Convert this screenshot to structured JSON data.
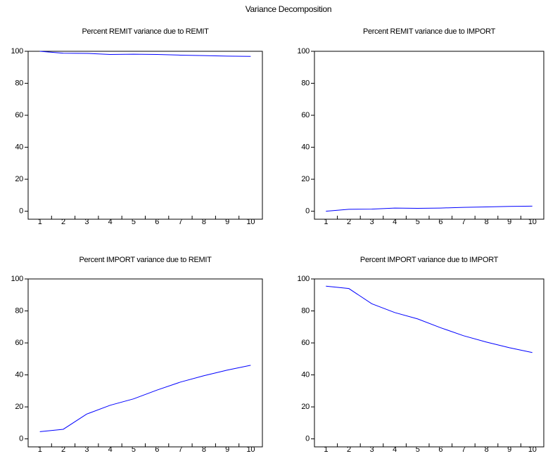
{
  "title": "Variance Decomposition",
  "chart_data": [
    {
      "type": "line",
      "title": "Percent REMIT variance due to REMIT",
      "categories": [
        "1",
        "2",
        "3",
        "4",
        "5",
        "6",
        "7",
        "8",
        "9",
        "10"
      ],
      "values": [
        100,
        98.8,
        98.7,
        98.0,
        98.2,
        98.0,
        97.6,
        97.3,
        97.0,
        96.8
      ],
      "color": "#0000ff",
      "ylim": [
        -5,
        100
      ],
      "yticks": [
        0,
        20,
        40,
        60,
        80,
        100
      ]
    },
    {
      "type": "line",
      "title": "Percent REMIT variance due to IMPORT",
      "categories": [
        "1",
        "2",
        "3",
        "4",
        "5",
        "6",
        "7",
        "8",
        "9",
        "10"
      ],
      "values": [
        0,
        1.2,
        1.3,
        2.0,
        1.8,
        2.0,
        2.4,
        2.7,
        3.0,
        3.2
      ],
      "color": "#0000ff",
      "ylim": [
        -5,
        100
      ],
      "yticks": [
        0,
        20,
        40,
        60,
        80,
        100
      ]
    },
    {
      "type": "line",
      "title": "Percent IMPORT variance due to REMIT",
      "categories": [
        "1",
        "2",
        "3",
        "4",
        "5",
        "6",
        "7",
        "8",
        "9",
        "10"
      ],
      "values": [
        4.5,
        6,
        15.5,
        21,
        25,
        30.5,
        35.5,
        39.5,
        43,
        46
      ],
      "color": "#0000ff",
      "ylim": [
        -5,
        100
      ],
      "yticks": [
        0,
        20,
        40,
        60,
        80,
        100
      ]
    },
    {
      "type": "line",
      "title": "Percent IMPORT variance due to IMPORT",
      "categories": [
        "1",
        "2",
        "3",
        "4",
        "5",
        "6",
        "7",
        "8",
        "9",
        "10"
      ],
      "values": [
        95.5,
        94,
        84.5,
        79,
        75,
        69.5,
        64.5,
        60.5,
        57,
        54
      ],
      "color": "#0000ff",
      "ylim": [
        -5,
        100
      ],
      "yticks": [
        0,
        20,
        40,
        60,
        80,
        100
      ]
    }
  ]
}
